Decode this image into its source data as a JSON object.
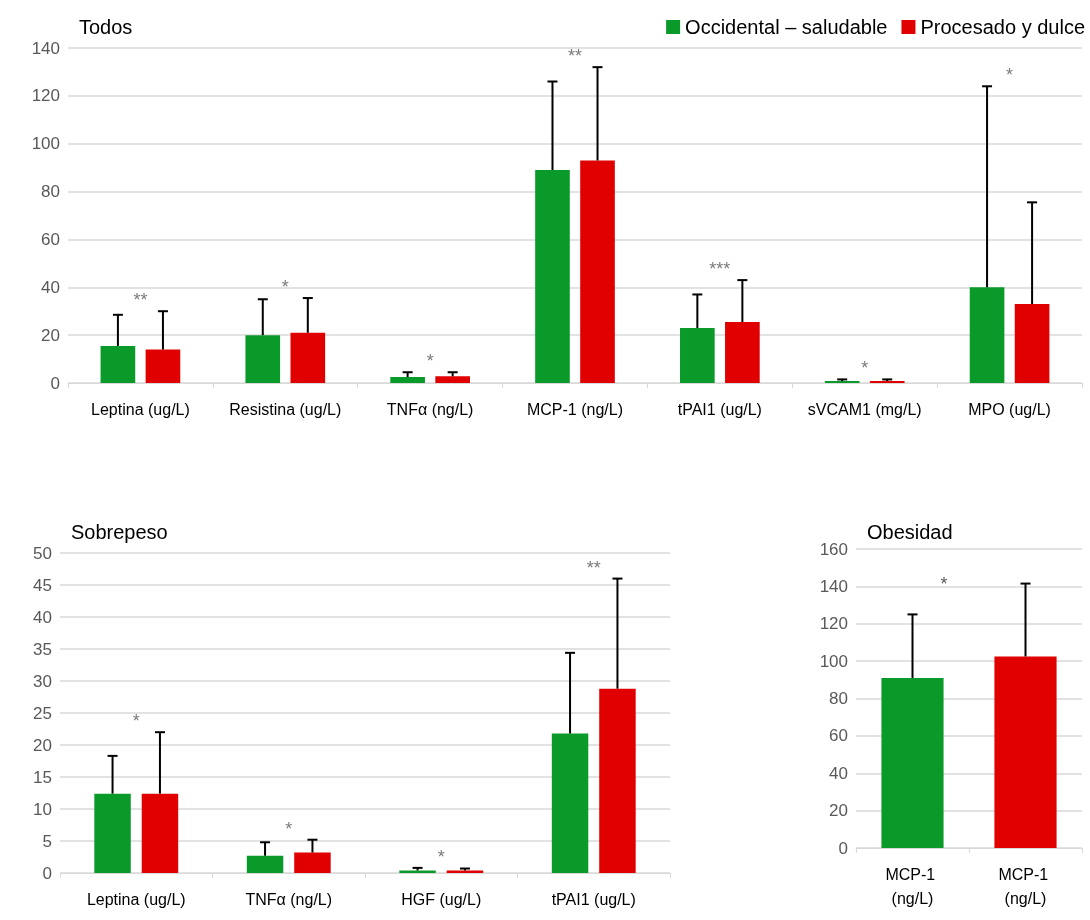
{
  "chart_data": [
    {
      "type": "bar",
      "title": "Todos",
      "categories": [
        "Leptina (ug/L)",
        "Resistina (ug/L)",
        "TNFα (ng/L)",
        "MCP-1 (ng/L)",
        "tPAI1 (ug/L)",
        "sVCAM1 (mg/L)",
        "MPO (ug/L)"
      ],
      "series": [
        {
          "name": "Occidental – saludable",
          "color": "#0a9a2a",
          "values": [
            15.5,
            20,
            2.5,
            89,
            23,
            0.8,
            40
          ],
          "errors": [
            [
              15.5,
              28.5
            ],
            [
              20,
              35
            ],
            [
              2.5,
              4.5
            ],
            [
              89,
              126
            ],
            [
              23,
              37
            ],
            [
              0.8,
              1.5
            ],
            [
              40,
              124
            ]
          ]
        },
        {
          "name": "Procesado y dulce",
          "color": "#e00000",
          "values": [
            14,
            21,
            2.8,
            93,
            25.5,
            0.8,
            33
          ],
          "errors": [
            [
              14,
              30
            ],
            [
              21,
              35.5
            ],
            [
              2.8,
              4.5
            ],
            [
              93,
              132
            ],
            [
              25.5,
              43
            ],
            [
              0.8,
              1.5
            ],
            [
              33,
              75.5
            ]
          ]
        }
      ],
      "ylim": [
        0,
        140
      ],
      "yticks": [
        0,
        20,
        40,
        60,
        80,
        100,
        120,
        140
      ],
      "grid": "y",
      "legend": "top right",
      "annotations": [
        "**",
        "*",
        "*",
        "**",
        "***",
        "*",
        "*"
      ]
    },
    {
      "type": "bar",
      "title": "Sobrepeso",
      "categories": [
        "Leptina (ug/L)",
        "TNFα (ng/L)",
        "HGF (ug/L)",
        "tPAI1 (ug/L)"
      ],
      "series": [
        {
          "color": "#0a9a2a",
          "values": [
            12.4,
            2.7,
            0.4,
            21.8
          ],
          "errors": [
            [
              12.4,
              18.3
            ],
            [
              2.7,
              4.8
            ],
            [
              0.4,
              0.8
            ],
            [
              21.8,
              34.4
            ]
          ]
        },
        {
          "color": "#e00000",
          "values": [
            12.4,
            3.2,
            0.4,
            28.8
          ],
          "errors": [
            [
              12.4,
              22
            ],
            [
              3.2,
              5.2
            ],
            [
              0.4,
              0.7
            ],
            [
              28.8,
              46
            ]
          ]
        }
      ],
      "ylim": [
        0,
        50
      ],
      "yticks": [
        0,
        5,
        10,
        15,
        20,
        25,
        30,
        35,
        40,
        45,
        50
      ],
      "grid": "y",
      "legend": false,
      "annotations": [
        "*",
        "*",
        "*",
        "**"
      ]
    },
    {
      "type": "bar",
      "title": "Obesidad",
      "categories": [
        "MCP-1 (ng/L)",
        "MCP-1 (ng/L)"
      ],
      "values": [
        91,
        102.5
      ],
      "colors": [
        "#0a9a2a",
        "#e00000"
      ],
      "errors": [
        [
          91,
          125
        ],
        [
          102.5,
          141.5
        ]
      ],
      "ylim": [
        0,
        160
      ],
      "yticks": [
        0,
        20,
        40,
        60,
        80,
        100,
        120,
        140,
        160
      ],
      "grid": "y",
      "legend": false,
      "annotations": [
        "*"
      ]
    }
  ]
}
